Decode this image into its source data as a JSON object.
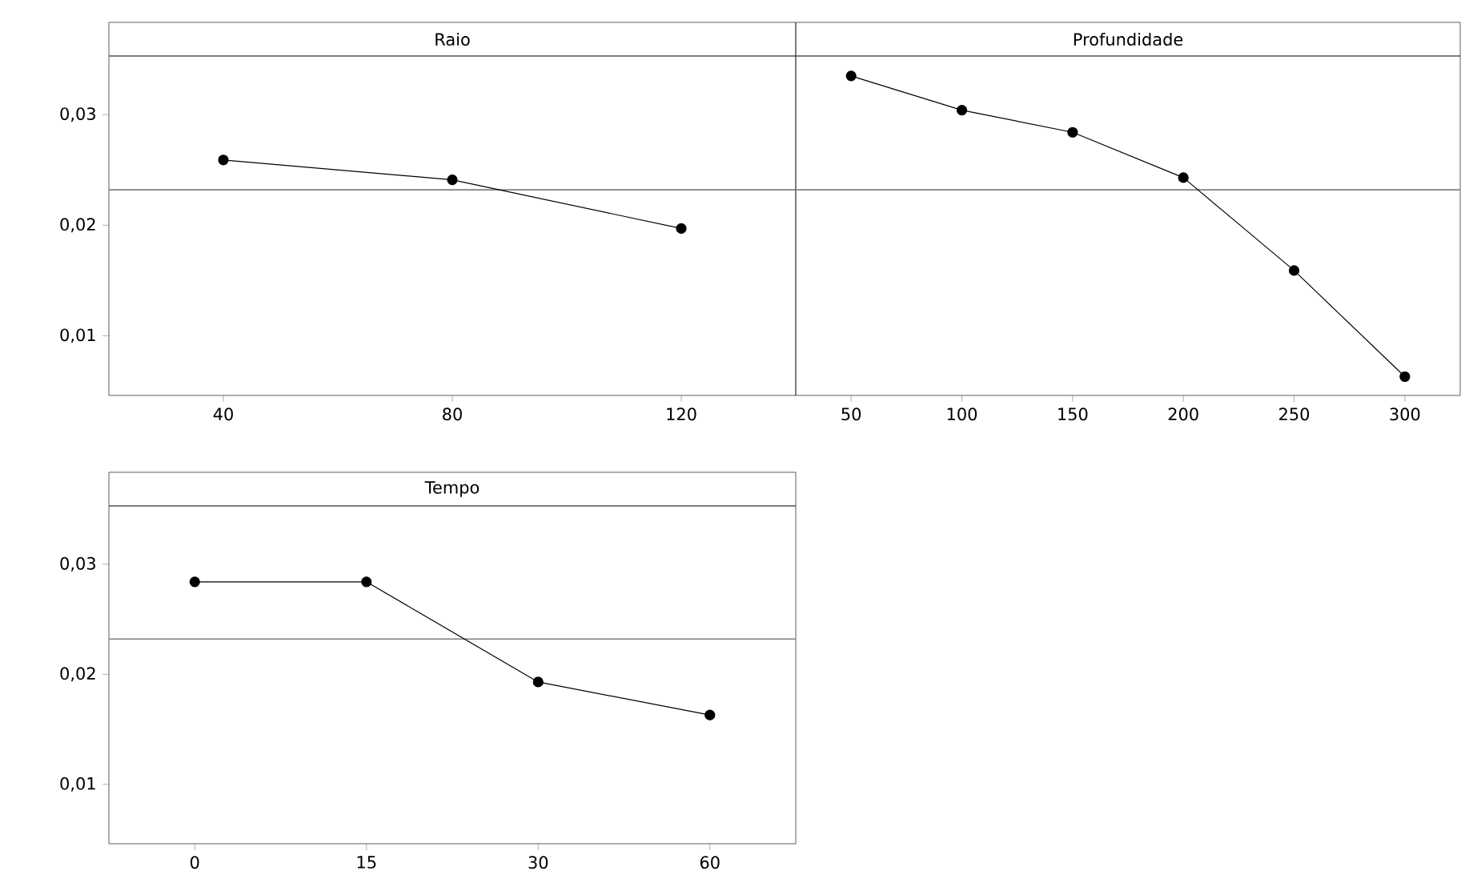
{
  "chart_data": [
    {
      "type": "line",
      "title": "Raio",
      "categories": [
        "40",
        "80",
        "120"
      ],
      "values": [
        0.0259,
        0.0241,
        0.0197
      ],
      "color": "#000000",
      "marker": "circle",
      "ylim": [
        0.0046,
        0.0353
      ],
      "yticks": [
        {
          "value": 0.01,
          "label": "0,01"
        },
        {
          "value": 0.02,
          "label": "0,02"
        },
        {
          "value": 0.03,
          "label": "0,03"
        }
      ],
      "ref_lines": [
        {
          "axis": "y",
          "value": 0.0232,
          "color": "#808080"
        }
      ]
    },
    {
      "type": "line",
      "title": "Profundidade",
      "categories": [
        "50",
        "100",
        "150",
        "200",
        "250",
        "300"
      ],
      "values": [
        0.0335,
        0.0304,
        0.0284,
        0.0243,
        0.0159,
        0.0063
      ],
      "color": "#000000",
      "marker": "circle",
      "ylim": [
        0.0046,
        0.0353
      ],
      "tick_labels": "x",
      "ref_lines": [
        {
          "axis": "y",
          "value": 0.0232,
          "color": "#808080"
        }
      ]
    },
    {
      "type": "line",
      "title": "Tempo",
      "categories": [
        "0",
        "15",
        "30",
        "60"
      ],
      "values": [
        0.0284,
        0.0284,
        0.0193,
        0.0163
      ],
      "color": "#000000",
      "marker": "circle",
      "ylim": [
        0.0046,
        0.0353
      ],
      "yticks": [
        {
          "value": 0.01,
          "label": "0,01"
        },
        {
          "value": 0.02,
          "label": "0,02"
        },
        {
          "value": 0.03,
          "label": "0,03"
        }
      ],
      "ref_lines": [
        {
          "axis": "y",
          "value": 0.0232,
          "color": "#808080"
        }
      ]
    }
  ]
}
